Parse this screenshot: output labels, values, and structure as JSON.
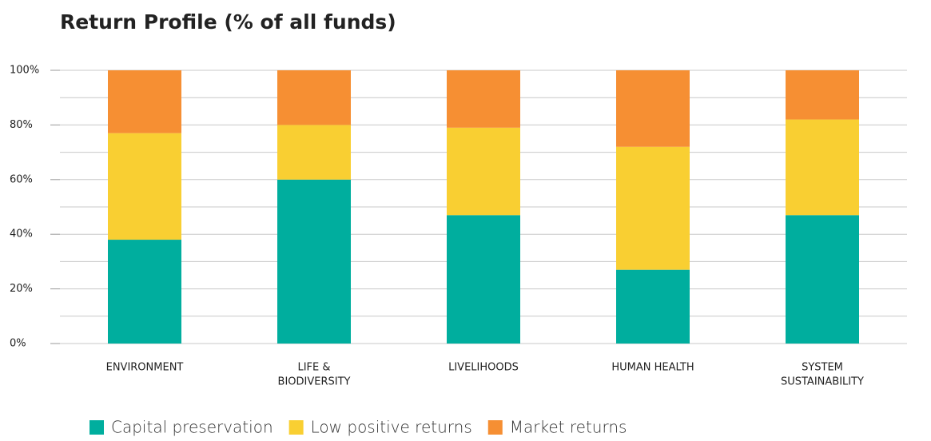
{
  "chart_data": {
    "type": "stacked_bar",
    "title": "Return Profile (% of all funds)",
    "categories": [
      [
        "ENVIRONMENT"
      ],
      [
        "LIFE &",
        "BIODIVERSITY"
      ],
      [
        "LIVELIHOODS"
      ],
      [
        "HUMAN HEALTH"
      ],
      [
        "SYSTEM",
        "SUSTAINABILITY"
      ]
    ],
    "series": [
      {
        "name": "Capital preservation",
        "color": "#00ae9e",
        "values": [
          38,
          60,
          47,
          27,
          47
        ]
      },
      {
        "name": "Low positive returns",
        "color": "#f9cf32",
        "values": [
          39,
          20,
          32,
          45,
          35
        ]
      },
      {
        "name": "Market returns",
        "color": "#f68f33",
        "values": [
          23,
          20,
          21,
          28,
          18
        ]
      }
    ],
    "ylim": [
      0,
      100
    ],
    "yticks": [
      {
        "value": 0,
        "label": "0%"
      },
      {
        "value": 20,
        "label": "20%"
      },
      {
        "value": 40,
        "label": "40%"
      },
      {
        "value": 60,
        "label": "60%"
      },
      {
        "value": 80,
        "label": "80%"
      },
      {
        "value": 100,
        "label": "100%"
      }
    ],
    "ygrid": [
      0,
      10,
      20,
      30,
      40,
      50,
      60,
      70,
      80,
      90,
      100
    ],
    "grid": true,
    "legend": "bottom"
  }
}
